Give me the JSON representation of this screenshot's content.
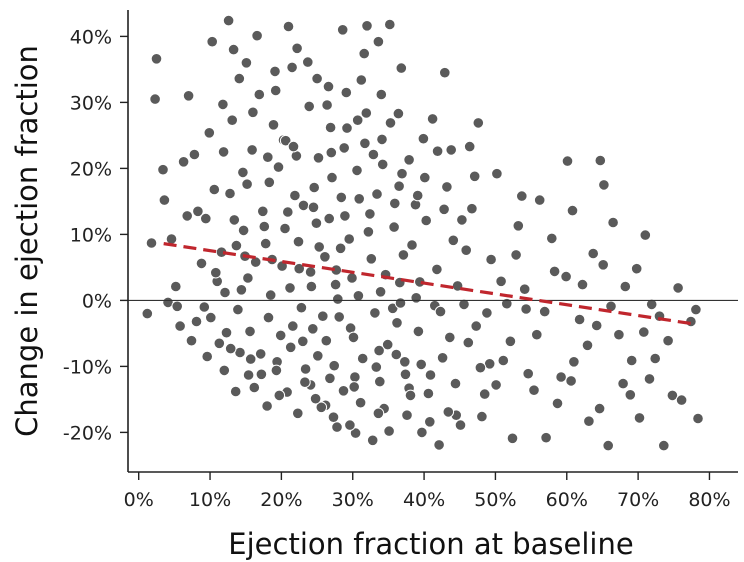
{
  "chart_data": {
    "type": "scatter",
    "title": "",
    "xlabel": "Ejection fraction at baseline",
    "ylabel": "Change in ejection fraction",
    "xlim": [
      -1.5,
      84
    ],
    "ylim": [
      -26,
      44
    ],
    "x_ticks": [
      0,
      10,
      20,
      30,
      40,
      50,
      60,
      70,
      80
    ],
    "x_tick_labels": [
      "0%",
      "10%",
      "20%",
      "30%",
      "40%",
      "50%",
      "60%",
      "70%",
      "80%"
    ],
    "y_ticks": [
      -20,
      -10,
      0,
      10,
      20,
      30,
      40
    ],
    "y_tick_labels": [
      "-20%",
      "-10%",
      "0%",
      "10%",
      "20%",
      "30%",
      "40%"
    ],
    "reference_line_y": 0,
    "grid": false,
    "legend": "none",
    "colors": {
      "points": "#5a5a5a",
      "point_edge": "#ffffff",
      "trend": "#c0262d"
    },
    "trend_line": {
      "style": "dashed",
      "x": [
        3.5,
        78
      ],
      "y": [
        8.6,
        -3.6
      ]
    },
    "series": [
      {
        "points": [
          [
            1.2,
            -2
          ],
          [
            2.3,
            30.5
          ],
          [
            2.5,
            36.6
          ],
          [
            1.8,
            8.7
          ],
          [
            3.4,
            19.8
          ],
          [
            3.6,
            15.2
          ],
          [
            4.1,
            -0.3
          ],
          [
            5.2,
            2.1
          ],
          [
            5.8,
            -3.9
          ],
          [
            6.3,
            21
          ],
          [
            7,
            31
          ],
          [
            7.8,
            22.1
          ],
          [
            8.3,
            13.5
          ],
          [
            9.2,
            -1
          ],
          [
            9.6,
            -8.5
          ],
          [
            10.3,
            39.2
          ],
          [
            11,
            2.9
          ],
          [
            11.8,
            29.7
          ],
          [
            12.6,
            42.4
          ],
          [
            13.3,
            38
          ],
          [
            12,
            -10.6
          ],
          [
            14.2,
            -7.9
          ],
          [
            15.1,
            36
          ],
          [
            16,
            28.5
          ],
          [
            17.2,
            -11.2
          ],
          [
            18,
            -16
          ],
          [
            19.1,
            34.7
          ],
          [
            20.3,
            24.3
          ],
          [
            21,
            41.5
          ],
          [
            22.2,
            38.2
          ],
          [
            23,
            -6.2
          ],
          [
            24.1,
            -12.8
          ],
          [
            25,
            33.6
          ],
          [
            26.2,
            -15.9
          ],
          [
            27,
            22.4
          ],
          [
            27.8,
            -19.2
          ],
          [
            28.6,
            41
          ],
          [
            29.7,
            -4.2
          ],
          [
            30.4,
            -20.1
          ],
          [
            31.2,
            33.4
          ],
          [
            32,
            41.6
          ],
          [
            32.8,
            -21.2
          ],
          [
            33.6,
            39.2
          ],
          [
            34.4,
            -16.4
          ],
          [
            35.2,
            41.8
          ],
          [
            36.1,
            -8.2
          ],
          [
            36.8,
            35.2
          ],
          [
            37.9,
            -13.3
          ],
          [
            38.8,
            14.5
          ],
          [
            39.7,
            -20
          ],
          [
            40.6,
            -14.1
          ],
          [
            41.2,
            27.5
          ],
          [
            42.1,
            -21.9
          ],
          [
            42.9,
            34.5
          ],
          [
            43.8,
            22.8
          ],
          [
            44.5,
            -17.4
          ],
          [
            45.3,
            12.2
          ],
          [
            46.2,
            -6.4
          ],
          [
            47.1,
            18.8
          ],
          [
            47.6,
            26.9
          ],
          [
            48.5,
            -14.2
          ],
          [
            49.4,
            6.2
          ],
          [
            50.2,
            19.2
          ],
          [
            51.1,
            -9.1
          ],
          [
            52.4,
            -20.9
          ],
          [
            53.2,
            11.3
          ],
          [
            54.3,
            -1.3
          ],
          [
            55.4,
            -13.6
          ],
          [
            56.2,
            15.2
          ],
          [
            57.1,
            -20.8
          ],
          [
            58.3,
            4.4
          ],
          [
            59.2,
            -11.6
          ],
          [
            60.1,
            21.1
          ],
          [
            61,
            -9.3
          ],
          [
            62.2,
            2.4
          ],
          [
            63.1,
            -18.3
          ],
          [
            64.2,
            -3.8
          ],
          [
            64.7,
            21.2
          ],
          [
            65.2,
            17.5
          ],
          [
            65.8,
            -22
          ],
          [
            66.5,
            11.8
          ],
          [
            67.3,
            -5.2
          ],
          [
            68.2,
            2.1
          ],
          [
            69.1,
            -9.1
          ],
          [
            70.2,
            -17.8
          ],
          [
            71,
            9.9
          ],
          [
            71.9,
            -0.6
          ],
          [
            73,
            -2.4
          ],
          [
            73.6,
            -22
          ],
          [
            74.8,
            -14.4
          ],
          [
            76.1,
            -15.1
          ],
          [
            77.4,
            -3.2
          ],
          [
            78.1,
            -1.4
          ],
          [
            78.4,
            -17.9
          ],
          [
            60.8,
            13.6
          ],
          [
            43.6,
            -5.6
          ],
          [
            22.5,
            4.8
          ],
          [
            28.3,
            7.9
          ],
          [
            14.7,
            10.6
          ],
          [
            36.6,
            2.7
          ],
          [
            24.6,
            17.1
          ],
          [
            18.2,
            -2.6
          ],
          [
            31.4,
            -8.8
          ],
          [
            26.7,
            12.4
          ],
          [
            19.6,
            20.2
          ],
          [
            34.2,
            20.6
          ],
          [
            10.8,
            4.2
          ],
          [
            15.6,
            -4.7
          ],
          [
            27.9,
            0.2
          ],
          [
            21.3,
            -7.1
          ],
          [
            38.3,
            8.4
          ],
          [
            33.1,
            -1.9
          ],
          [
            41.8,
            4.7
          ],
          [
            12.8,
            16.2
          ],
          [
            29.2,
            26.1
          ],
          [
            17.4,
            13.5
          ],
          [
            25.8,
            -2.4
          ],
          [
            30.9,
            15.4
          ],
          [
            23.4,
            -10.4
          ],
          [
            35.8,
            11.1
          ],
          [
            16.4,
            5.8
          ],
          [
            39.2,
            -4.7
          ],
          [
            20.5,
            10.9
          ],
          [
            32.6,
            6.3
          ],
          [
            44.7,
            2.2
          ],
          [
            13.9,
            -1.4
          ],
          [
            27.1,
            18.6
          ],
          [
            18.9,
            26.6
          ],
          [
            37.4,
            -11.2
          ],
          [
            22.8,
            -1.1
          ],
          [
            29.9,
            3.4
          ],
          [
            15.9,
            22.8
          ],
          [
            25.3,
            8.1
          ],
          [
            34.9,
            -6.7
          ],
          [
            47.3,
            -3.9
          ],
          [
            11.6,
            7.3
          ],
          [
            21.9,
            15.9
          ],
          [
            31.7,
            23.8
          ],
          [
            26.3,
            -6.1
          ],
          [
            19.4,
            -9.3
          ],
          [
            40.3,
            12.1
          ],
          [
            33.8,
            -12.3
          ],
          [
            14.4,
            1.6
          ],
          [
            28.7,
            -13.7
          ],
          [
            23.9,
            29.4
          ],
          [
            36.9,
            19.2
          ],
          [
            17.8,
            8.6
          ],
          [
            30.1,
            -5.6
          ],
          [
            42.6,
            -8.7
          ],
          [
            24.2,
            2.1
          ],
          [
            45.9,
            7.6
          ],
          [
            20.8,
            -13.9
          ],
          [
            32.2,
            10.4
          ],
          [
            16.9,
            31.2
          ],
          [
            38.9,
            0.4
          ],
          [
            27.4,
            -9.9
          ],
          [
            13.4,
            12.2
          ],
          [
            35.3,
            26.9
          ],
          [
            22.1,
            21.9
          ],
          [
            29.5,
            9.3
          ],
          [
            49.2,
            -9.6
          ],
          [
            18.5,
            0.8
          ],
          [
            25.6,
            -16.2
          ],
          [
            33.4,
            16.1
          ],
          [
            43.2,
            17.2
          ],
          [
            20.1,
            5.2
          ],
          [
            31.1,
            -15.5
          ],
          [
            15.2,
            17.6
          ],
          [
            26.9,
            26.2
          ],
          [
            37.1,
            6.9
          ],
          [
            12.3,
            -4.9
          ],
          [
            24.9,
            11.7
          ],
          [
            39.6,
            -9.7
          ],
          [
            28.1,
            -2.5
          ],
          [
            46.7,
            13.9
          ],
          [
            21.6,
            -3.9
          ],
          [
            34.6,
            3.9
          ],
          [
            17.1,
            -8.1
          ],
          [
            30.6,
            19.7
          ],
          [
            23.1,
            14.4
          ],
          [
            41.5,
            -0.8
          ],
          [
            14.9,
            6.7
          ],
          [
            27.7,
            4.6
          ],
          [
            36.2,
            -3.4
          ],
          [
            19.9,
            -5.3
          ],
          [
            31.9,
            28.4
          ],
          [
            50.8,
            2.9
          ],
          [
            25.1,
            -8.4
          ],
          [
            22.4,
            8.9
          ],
          [
            33.3,
            -10.1
          ],
          [
            18.3,
            17.9
          ],
          [
            28.9,
            12.8
          ],
          [
            38.1,
            -14.4
          ],
          [
            15.4,
            -11.3
          ],
          [
            44.1,
            9.1
          ],
          [
            26.1,
            6.6
          ],
          [
            35.6,
            -1.2
          ],
          [
            20.6,
            24.2
          ],
          [
            30.3,
            -11.6
          ],
          [
            24.4,
            -4.3
          ],
          [
            52.9,
            6.9
          ],
          [
            55.8,
            -5.2
          ],
          [
            57.9,
            9.4
          ],
          [
            61.8,
            -2.9
          ],
          [
            63.7,
            7.1
          ],
          [
            67.9,
            -12.6
          ],
          [
            69.8,
            4.8
          ],
          [
            72.4,
            -8.8
          ],
          [
            75.6,
            1.9
          ],
          [
            54.6,
            -11.1
          ],
          [
            58.7,
            -15.6
          ],
          [
            62.9,
            -6.8
          ],
          [
            66.2,
            -0.9
          ],
          [
            48.1,
            -17.6
          ],
          [
            53.7,
            15.8
          ],
          [
            59.9,
            3.6
          ],
          [
            65.1,
            5.4
          ],
          [
            70.8,
            -4.8
          ],
          [
            68.9,
            -14.3
          ],
          [
            74.2,
            -6.1
          ],
          [
            46.4,
            23.3
          ],
          [
            50.1,
            -12.8
          ],
          [
            56.9,
            -1.7
          ],
          [
            52.1,
            -6.2
          ],
          [
            60.6,
            -12.2
          ],
          [
            64.6,
            -16.4
          ],
          [
            71.6,
            -11.9
          ],
          [
            7.4,
            -6.1
          ],
          [
            8.8,
            5.6
          ],
          [
            6.8,
            12.8
          ],
          [
            9.9,
            25.4
          ],
          [
            5.4,
            -0.9
          ],
          [
            8.1,
            -3.2
          ],
          [
            4.6,
            9.3
          ],
          [
            10.6,
            16.8
          ],
          [
            11.3,
            -6.5
          ],
          [
            13.1,
            27.3
          ],
          [
            14.1,
            33.6
          ],
          [
            16.6,
            40.1
          ],
          [
            19.2,
            31.8
          ],
          [
            21.5,
            35.3
          ],
          [
            23.7,
            36.1
          ],
          [
            26.6,
            32.4
          ],
          [
            29.1,
            31.5
          ],
          [
            31.6,
            37.4
          ],
          [
            34,
            31.2
          ],
          [
            36.4,
            28.3
          ],
          [
            39.9,
            24.5
          ],
          [
            41.9,
            22.6
          ],
          [
            45.1,
            -18.9
          ],
          [
            43.4,
            -16.9
          ],
          [
            40.8,
            -18.4
          ],
          [
            37.6,
            -17.4
          ],
          [
            35.1,
            -19.8
          ],
          [
            33.6,
            -17.1
          ],
          [
            29.6,
            -18.9
          ],
          [
            27.3,
            -17.7
          ],
          [
            24.8,
            -14.9
          ],
          [
            22.3,
            -17.1
          ],
          [
            19.7,
            -14.4
          ],
          [
            16.2,
            -13.2
          ],
          [
            13.6,
            -13.8
          ],
          [
            12.1,
            1.2
          ],
          [
            15.3,
            3.4
          ],
          [
            18.7,
            6.2
          ],
          [
            21.2,
            1.9
          ],
          [
            24.1,
            4.3
          ],
          [
            27.6,
            2.4
          ],
          [
            30.8,
            0.7
          ],
          [
            33.9,
            1.3
          ],
          [
            36.7,
            -0.4
          ],
          [
            39.4,
            2.8
          ],
          [
            42.3,
            -1.7
          ],
          [
            45.6,
            -0.6
          ],
          [
            48.8,
            -1.9
          ],
          [
            51.6,
            -0.5
          ],
          [
            54.1,
            1.7
          ],
          [
            13.7,
            8.3
          ],
          [
            17.6,
            11.2
          ],
          [
            20.9,
            13.4
          ],
          [
            24.5,
            14.1
          ],
          [
            28.4,
            15.6
          ],
          [
            32.4,
            13.1
          ],
          [
            35.9,
            14.7
          ],
          [
            39.1,
            15.9
          ],
          [
            42.8,
            13.8
          ],
          [
            15.7,
            -8.9
          ],
          [
            19.3,
            -10.6
          ],
          [
            23.3,
            -12.4
          ],
          [
            26.8,
            -11.8
          ],
          [
            30.2,
            -13.1
          ],
          [
            33.7,
            -7.6
          ],
          [
            37.3,
            -9.3
          ],
          [
            40.9,
            -11.3
          ],
          [
            44.4,
            -12.6
          ],
          [
            47.9,
            -10.2
          ],
          [
            14.6,
            19.4
          ],
          [
            18.1,
            21.7
          ],
          [
            21.7,
            23.3
          ],
          [
            25.2,
            21.6
          ],
          [
            28.8,
            23.1
          ],
          [
            32.9,
            22.1
          ],
          [
            36.5,
            17.3
          ],
          [
            40.1,
            18.6
          ],
          [
            11.9,
            22.5
          ],
          [
            9.4,
            12.4
          ],
          [
            10.1,
            -2.6
          ],
          [
            12.9,
            -7.3
          ],
          [
            26.4,
            29.6
          ],
          [
            30.7,
            27.3
          ],
          [
            34.1,
            24.4
          ],
          [
            37.9,
            21.3
          ]
        ]
      }
    ]
  }
}
